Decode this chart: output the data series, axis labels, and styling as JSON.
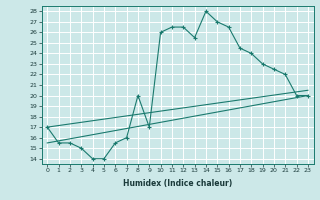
{
  "xlabel": "Humidex (Indice chaleur)",
  "ylabel": "",
  "bg_color": "#cce8e8",
  "line_color": "#1a7a6e",
  "grid_color": "#b8d8d8",
  "xlim": [
    -0.5,
    23.5
  ],
  "ylim": [
    13.5,
    28.5
  ],
  "yticks": [
    14,
    15,
    16,
    17,
    18,
    19,
    20,
    21,
    22,
    23,
    24,
    25,
    26,
    27,
    28
  ],
  "xticks": [
    0,
    1,
    2,
    3,
    4,
    5,
    6,
    7,
    8,
    9,
    10,
    11,
    12,
    13,
    14,
    15,
    16,
    17,
    18,
    19,
    20,
    21,
    22,
    23
  ],
  "main_x": [
    0,
    1,
    2,
    3,
    4,
    5,
    6,
    7,
    8,
    9,
    10,
    11,
    12,
    13,
    14,
    15,
    16,
    17,
    18,
    19,
    20,
    21,
    22,
    23
  ],
  "main_y": [
    17.0,
    15.5,
    15.5,
    15.0,
    14.0,
    14.0,
    15.5,
    16.0,
    20.0,
    17.0,
    26.0,
    26.5,
    26.5,
    25.5,
    28.0,
    27.0,
    26.5,
    24.5,
    24.0,
    23.0,
    22.5,
    22.0,
    20.0,
    20.0
  ],
  "line2_x": [
    0,
    23
  ],
  "line2_y": [
    17.0,
    20.5
  ],
  "line3_x": [
    0,
    23
  ],
  "line3_y": [
    15.5,
    20.0
  ]
}
